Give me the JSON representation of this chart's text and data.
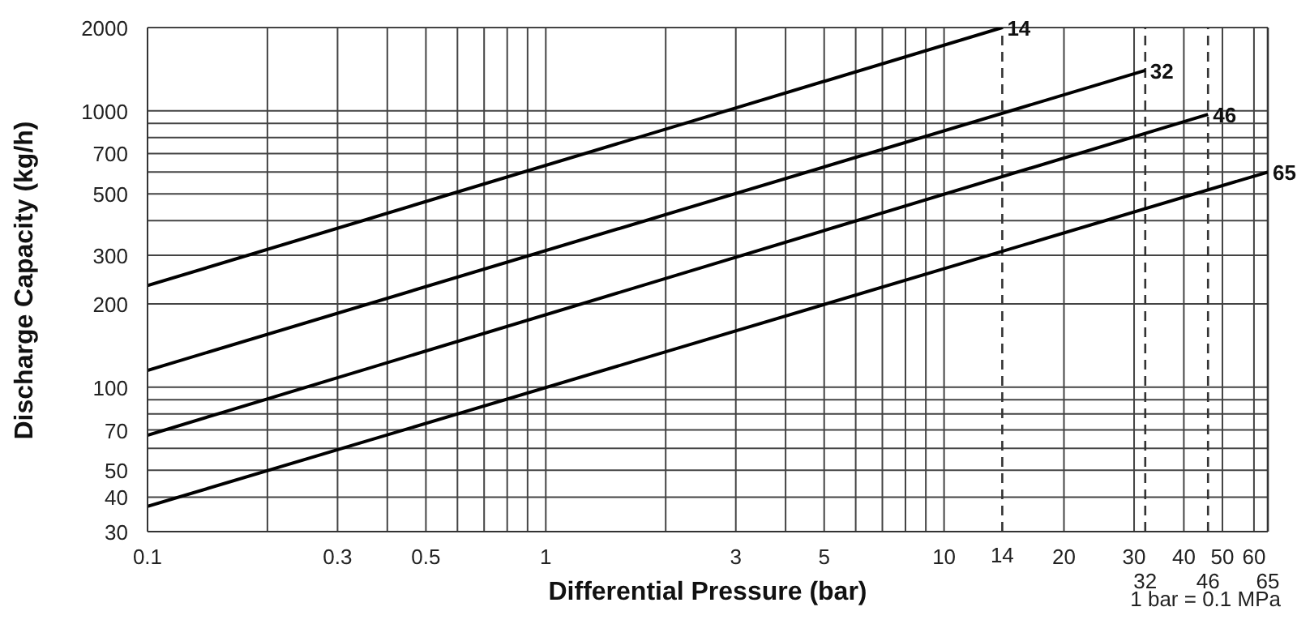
{
  "chart_data": {
    "type": "line",
    "xlabel": "Differential Pressure (bar)",
    "ylabel": "Discharge Capacity (kg/h)",
    "log": "xy",
    "grid": true,
    "marker": "none",
    "line_style": "solid",
    "xlim": [
      0.1,
      65
    ],
    "ylim": [
      30,
      2000
    ],
    "xticks": [
      0.1,
      {
        "value": 0.2,
        "label": null
      },
      0.3,
      {
        "value": 0.4,
        "label": null
      },
      0.5,
      {
        "value": 0.6,
        "label": null
      },
      {
        "value": 0.7,
        "label": null
      },
      {
        "value": 0.8,
        "label": null
      },
      {
        "value": 0.9,
        "label": null
      },
      1,
      {
        "value": 2,
        "label": null
      },
      3,
      {
        "value": 4,
        "label": null
      },
      5,
      {
        "value": 6,
        "label": null
      },
      {
        "value": 7,
        "label": null
      },
      {
        "value": 8,
        "label": null
      },
      {
        "value": 9,
        "label": null
      },
      10,
      20,
      30,
      40,
      50,
      60
    ],
    "yticks": [
      30,
      40,
      50,
      {
        "value": 60,
        "label": null
      },
      70,
      {
        "value": 80,
        "label": null
      },
      {
        "value": 90,
        "label": null
      },
      100,
      200,
      300,
      {
        "value": 400,
        "label": null
      },
      500,
      {
        "value": 600,
        "label": null
      },
      700,
      {
        "value": 800,
        "label": null
      },
      {
        "value": 900,
        "label": null
      },
      1000,
      2000
    ],
    "ref_lines": [
      {
        "axis": "x",
        "value": 14,
        "label": "14",
        "line_style": "dashed",
        "color": "#333333"
      },
      {
        "axis": "x",
        "value": 32,
        "label": "32",
        "line_style": "dashed",
        "color": "#333333"
      },
      {
        "axis": "x",
        "value": 46,
        "label": "46",
        "line_style": "dashed",
        "color": "#333333"
      },
      {
        "axis": "x",
        "value": 65,
        "label": "65",
        "line_style": "solid",
        "color": "#333333"
      }
    ],
    "series": [
      {
        "name": "14",
        "color": "#000000",
        "x": [
          0.1,
          14
        ],
        "values": [
          233,
          2000
        ]
      },
      {
        "name": "32",
        "color": "#000000",
        "x": [
          0.1,
          32
        ],
        "values": [
          115,
          1400
        ]
      },
      {
        "name": "46",
        "color": "#000000",
        "x": [
          0.1,
          46
        ],
        "values": [
          67,
          970
        ]
      },
      {
        "name": "65",
        "color": "#000000",
        "x": [
          0.1,
          65
        ],
        "values": [
          37,
          600
        ]
      }
    ],
    "annotations": [
      "1 bar = 0.1 MPa"
    ]
  }
}
